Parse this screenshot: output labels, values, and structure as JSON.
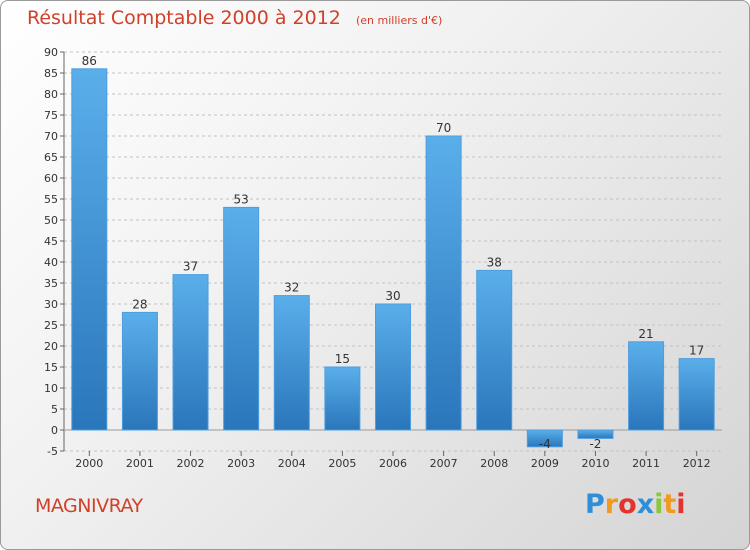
{
  "chart_data": {
    "type": "bar",
    "title": "Résultat Comptable 2000 à 2012",
    "subtitle": "(en milliers d'€)",
    "categories": [
      "2000",
      "2001",
      "2002",
      "2003",
      "2004",
      "2005",
      "2006",
      "2007",
      "2008",
      "2009",
      "2010",
      "2011",
      "2012"
    ],
    "values": [
      86,
      28,
      37,
      53,
      32,
      15,
      30,
      70,
      38,
      -4,
      -2,
      21,
      17
    ],
    "ylim": [
      -5,
      90
    ],
    "yticks": [
      -5,
      0,
      5,
      10,
      15,
      20,
      25,
      30,
      35,
      40,
      45,
      50,
      55,
      60,
      65,
      70,
      75,
      80,
      85,
      90
    ],
    "grid": true,
    "bar_color": "#3d8fd6"
  },
  "commune": "MAGNIVRAY",
  "logo": {
    "letters": [
      "P",
      "r",
      "o",
      "x",
      "i",
      "t",
      "i"
    ],
    "colors": [
      "#2e8fd8",
      "#f29a1d",
      "#e2342d",
      "#2e8fd8",
      "#8cc63e",
      "#f29a1d",
      "#e2342d"
    ]
  }
}
